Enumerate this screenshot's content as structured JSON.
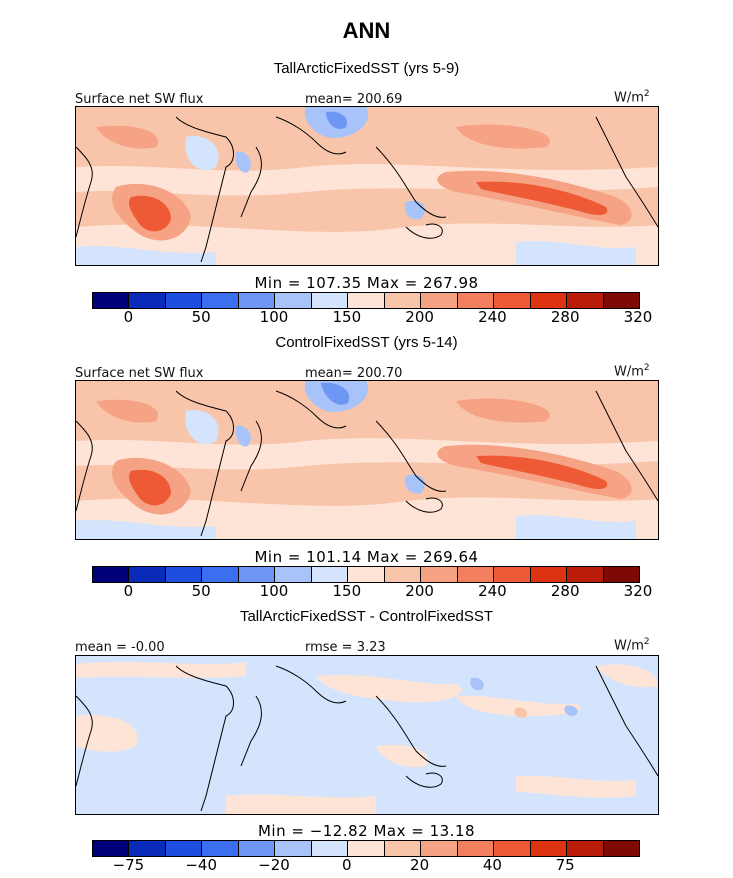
{
  "title": "ANN",
  "chart_data": [
    {
      "type": "heatmap",
      "title": "TallArcticFixedSST (yrs 5-9)",
      "variable": "Surface net SW flux",
      "mean_label": "mean= 200.69",
      "units": "W/m",
      "units_sup": "2",
      "min_max": "Min = 107.35 Max = 267.98",
      "colorbar_ticks": [
        "0",
        "50",
        "100",
        "150",
        "200",
        "240",
        "280",
        "320"
      ],
      "colorbar_levels": [
        -25,
        0,
        25,
        50,
        75,
        100,
        125,
        150,
        175,
        200,
        220,
        240,
        260,
        280,
        300,
        320,
        340
      ]
    },
    {
      "type": "heatmap",
      "title": "ControlFixedSST (yrs 5-14)",
      "variable": "Surface net SW flux",
      "mean_label": "mean= 200.70",
      "units": "W/m",
      "units_sup": "2",
      "min_max": "Min = 101.14 Max = 269.64",
      "colorbar_ticks": [
        "0",
        "50",
        "100",
        "150",
        "200",
        "240",
        "280",
        "320"
      ],
      "colorbar_levels": [
        -25,
        0,
        25,
        50,
        75,
        100,
        125,
        150,
        175,
        200,
        220,
        240,
        260,
        280,
        300,
        320,
        340
      ]
    },
    {
      "type": "heatmap",
      "title": "TallArcticFixedSST - ControlFixedSST",
      "mean_label": "mean = -0.00",
      "rmse_label": "rmse = 3.23",
      "units": "W/m",
      "units_sup": "2",
      "min_max": "Min = −12.82 Max = 13.18",
      "colorbar_ticks": [
        "−75",
        "−40",
        "−20",
        "0",
        "20",
        "40",
        "75"
      ],
      "colorbar_levels": [
        -100,
        -75,
        -50,
        -40,
        -30,
        -20,
        -10,
        0,
        10,
        20,
        30,
        40,
        50,
        75,
        100
      ]
    }
  ],
  "colormap": [
    "#00007a",
    "#0a2bb8",
    "#1e4ee0",
    "#3c6ef0",
    "#6e97f5",
    "#a8c2fa",
    "#d4e4fc",
    "#fde4d6",
    "#f9c5aa",
    "#f6a385",
    "#f27f5e",
    "#ee5a36",
    "#dd3310",
    "#b91d0a",
    "#7d0a04"
  ]
}
